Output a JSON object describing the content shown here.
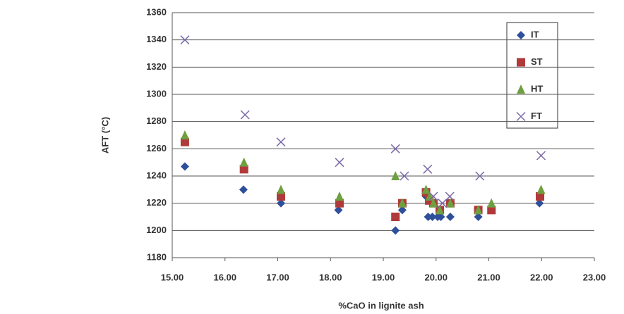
{
  "chart_data": {
    "type": "scatter",
    "x_label": "%CaO in lignite ash",
    "y_label": "AFT (°C)",
    "xlim": [
      15,
      23
    ],
    "ylim": [
      1180,
      1360
    ],
    "xticks": [
      {
        "value": 15,
        "label": "15.00"
      },
      {
        "value": 16,
        "label": "16.00"
      },
      {
        "value": 17,
        "label": "17.00"
      },
      {
        "value": 18,
        "label": "18.00"
      },
      {
        "value": 19,
        "label": "19.00"
      },
      {
        "value": 20,
        "label": "20.00"
      },
      {
        "value": 21,
        "label": "21.00"
      },
      {
        "value": 22,
        "label": "22.00"
      },
      {
        "value": 23,
        "label": "23.00"
      }
    ],
    "yticks": [
      1180,
      1200,
      1220,
      1240,
      1260,
      1280,
      1300,
      1320,
      1340,
      1360
    ],
    "grid": true,
    "legend": "upper right",
    "series": [
      {
        "name": "IT",
        "color": "#2e4f9a",
        "marker": "diamond",
        "x": [
          15.24,
          16.35,
          17.06,
          18.15,
          19.23,
          19.36,
          19.81,
          19.85,
          19.93,
          20.03,
          20.09,
          20.27,
          20.8,
          21.05,
          21.96
        ],
        "values": [
          1247,
          1230,
          1220,
          1215,
          1200,
          1215,
          1225,
          1210,
          1210,
          1210,
          1210,
          1210,
          1210,
          1215,
          1220
        ]
      },
      {
        "name": "ST",
        "color": "#b03a3a",
        "marker": "square",
        "x": [
          15.24,
          16.36,
          17.06,
          18.17,
          19.23,
          19.36,
          19.81,
          19.87,
          19.95,
          20.07,
          20.27,
          20.8,
          21.05,
          21.97
        ],
        "values": [
          1265,
          1245,
          1225,
          1220,
          1210,
          1220,
          1228,
          1222,
          1220,
          1215,
          1220,
          1215,
          1215,
          1225
        ]
      },
      {
        "name": "HT",
        "color": "#6fa040",
        "marker": "triangle",
        "x": [
          15.24,
          16.36,
          17.06,
          18.17,
          19.23,
          19.36,
          19.81,
          19.88,
          19.95,
          20.07,
          20.27,
          20.8,
          21.05,
          21.99
        ],
        "values": [
          1270,
          1250,
          1230,
          1225,
          1240,
          1220,
          1230,
          1225,
          1220,
          1215,
          1220,
          1215,
          1220,
          1230
        ]
      },
      {
        "name": "FT",
        "color": "#7b6aa6",
        "marker": "x",
        "x": [
          15.24,
          16.38,
          17.06,
          18.17,
          19.23,
          19.4,
          19.84,
          19.95,
          20.12,
          20.26,
          20.83,
          21.99
        ],
        "values": [
          1340,
          1285,
          1265,
          1250,
          1260,
          1240,
          1245,
          1225,
          1220,
          1225,
          1240,
          1255
        ]
      }
    ]
  }
}
